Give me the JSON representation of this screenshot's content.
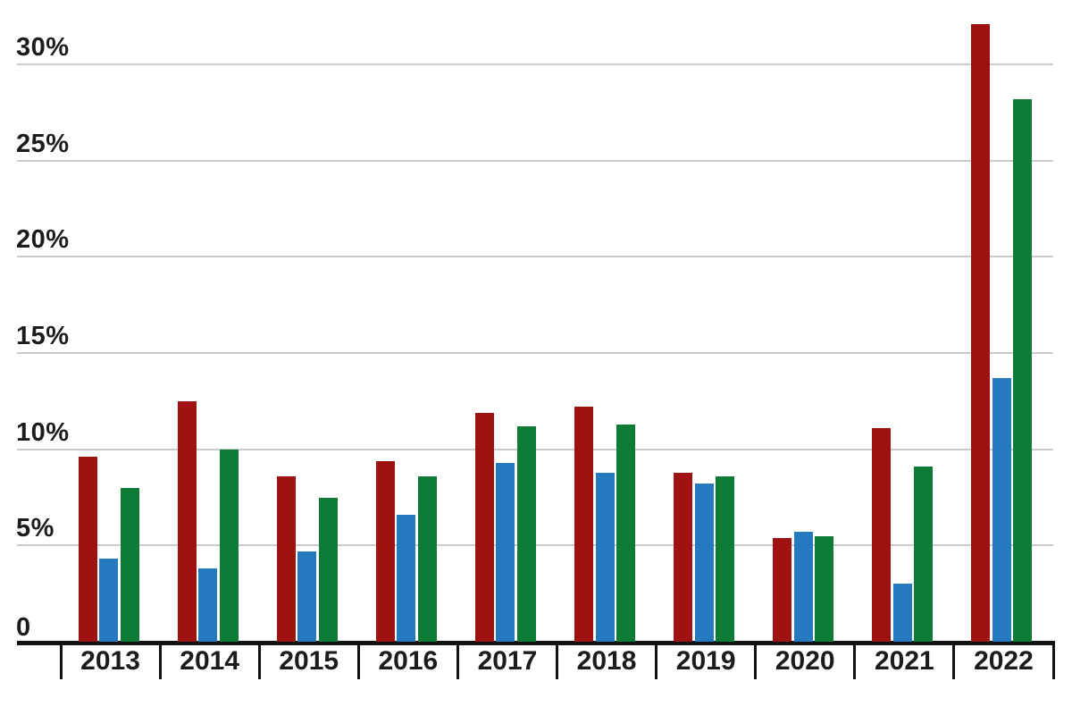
{
  "chart_data": {
    "type": "bar",
    "title": "",
    "xlabel": "",
    "ylabel": "",
    "categories": [
      "2013",
      "2014",
      "2015",
      "2016",
      "2017",
      "2018",
      "2019",
      "2020",
      "2021",
      "2022"
    ],
    "series": [
      {
        "name": "red",
        "color": "#9e1212",
        "values": [
          9.6,
          12.5,
          8.6,
          9.4,
          11.9,
          12.2,
          8.8,
          5.4,
          11.1,
          32.1
        ]
      },
      {
        "name": "blue",
        "color": "#2579bf",
        "values": [
          4.3,
          3.8,
          4.7,
          6.6,
          9.3,
          8.8,
          8.2,
          5.7,
          3.0,
          13.7
        ]
      },
      {
        "name": "green",
        "color": "#0e7b36",
        "values": [
          8.0,
          10.0,
          7.5,
          8.6,
          11.2,
          11.3,
          8.6,
          5.5,
          9.1,
          28.2
        ]
      }
    ],
    "y_axis": {
      "ticks": [
        0,
        5,
        10,
        15,
        20,
        25,
        30
      ],
      "tick_labels": [
        "0",
        "5%",
        "10%",
        "15%",
        "20%",
        "25%",
        "30%"
      ],
      "range": [
        0,
        32.5
      ]
    },
    "legend": "none",
    "grid": "horizontal",
    "colors": {
      "background": "#ffffff",
      "grid_color": "#cbcbcb",
      "axis_color": "#121212",
      "text_color": "#1c1c1c"
    }
  }
}
